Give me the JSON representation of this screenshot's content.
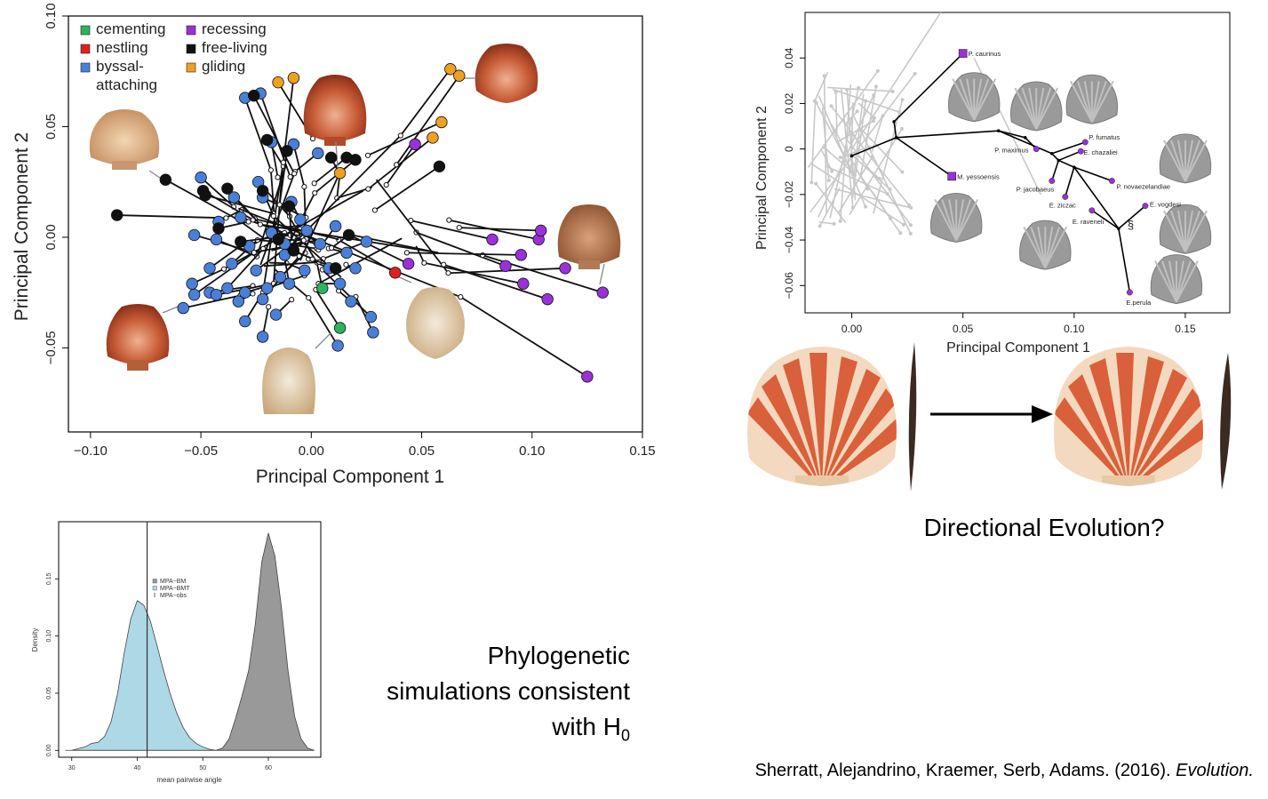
{
  "chart_data": [
    {
      "type": "scatter",
      "xlabel": "Principal Component 1",
      "ylabel": "Principal Component 2",
      "xlim": [
        -0.11,
        0.15
      ],
      "ylim": [
        -0.088,
        0.1
      ],
      "xticks": [
        "−0.10",
        "−0.05",
        "0.00",
        "0.05",
        "0.10",
        "0.15"
      ],
      "xtick_values": [
        -0.1,
        -0.05,
        0,
        0.05,
        0.1,
        0.15
      ],
      "yticks": [
        "−0.05",
        "0.00",
        "0.05",
        "0.10"
      ],
      "ytick_values": [
        -0.05,
        0,
        0.05,
        0.1
      ],
      "grid": false,
      "legend_position": "top-left",
      "categories": [
        {
          "name": "cementing",
          "color": "#2db35d"
        },
        {
          "name": "nestling",
          "color": "#e02020"
        },
        {
          "name": "byssal-attaching",
          "label_lines": [
            "byssal-",
            "attaching"
          ],
          "color": "#4a7fd8"
        },
        {
          "name": "recessing",
          "color": "#9b30d9"
        },
        {
          "name": "free-living",
          "color": "#111111"
        },
        {
          "name": "gliding",
          "color": "#f0a020"
        }
      ],
      "series": [
        {
          "name": "cementing",
          "points": [
            [
              0.005,
              -0.023
            ],
            [
              0.013,
              -0.041
            ]
          ]
        },
        {
          "name": "nestling",
          "points": [
            [
              0.038,
              -0.016
            ]
          ]
        },
        {
          "name": "byssal-attaching",
          "points": [
            [
              -0.03,
              0.063
            ],
            [
              -0.023,
              0.065
            ],
            [
              -0.018,
              0.043
            ],
            [
              -0.008,
              0.042
            ],
            [
              0.003,
              0.038
            ],
            [
              -0.05,
              0.027
            ],
            [
              -0.035,
              0.018
            ],
            [
              -0.024,
              0.025
            ],
            [
              -0.022,
              0.018
            ],
            [
              -0.009,
              0.016
            ],
            [
              -0.032,
              0.009
            ],
            [
              -0.042,
              0.007
            ],
            [
              -0.018,
              0.002
            ],
            [
              -0.005,
              0.008
            ],
            [
              -0.053,
              0.001
            ],
            [
              -0.043,
              -0.001
            ],
            [
              -0.028,
              -0.004
            ],
            [
              -0.012,
              -0.003
            ],
            [
              0.004,
              -0.003
            ],
            [
              0.016,
              -0.007
            ],
            [
              -0.046,
              -0.014
            ],
            [
              -0.036,
              -0.012
            ],
            [
              -0.025,
              -0.015
            ],
            [
              -0.014,
              -0.018
            ],
            [
              -0.003,
              -0.015
            ],
            [
              0.008,
              -0.014
            ],
            [
              0.02,
              -0.014
            ],
            [
              -0.054,
              -0.021
            ],
            [
              -0.046,
              -0.025
            ],
            [
              -0.038,
              -0.023
            ],
            [
              -0.03,
              -0.025
            ],
            [
              -0.02,
              -0.023
            ],
            [
              -0.01,
              -0.021
            ],
            [
              -0.053,
              -0.026
            ],
            [
              -0.043,
              -0.026
            ],
            [
              -0.033,
              -0.029
            ],
            [
              -0.022,
              -0.028
            ],
            [
              -0.016,
              -0.035
            ],
            [
              -0.058,
              -0.032
            ],
            [
              -0.03,
              -0.038
            ],
            [
              -0.022,
              -0.045
            ],
            [
              0.018,
              -0.029
            ],
            [
              0.012,
              -0.049
            ],
            [
              0.027,
              -0.036
            ],
            [
              0.028,
              -0.043
            ],
            [
              -0.012,
              -0.008
            ],
            [
              0.011,
              0.005
            ],
            [
              0.025,
              -0.002
            ],
            [
              0.013,
              -0.021
            ],
            [
              -0.002,
              0.003
            ]
          ]
        },
        {
          "name": "recessing",
          "points": [
            [
              0.047,
              0.042
            ],
            [
              0.044,
              -0.012
            ],
            [
              0.082,
              -0.001
            ],
            [
              0.088,
              -0.013
            ],
            [
              0.096,
              -0.021
            ],
            [
              0.103,
              -0.001
            ],
            [
              0.104,
              0.003
            ],
            [
              0.115,
              -0.014
            ],
            [
              0.107,
              -0.028
            ],
            [
              0.132,
              -0.025
            ],
            [
              0.125,
              -0.063
            ],
            [
              0.095,
              -0.008
            ]
          ]
        },
        {
          "name": "free-living",
          "points": [
            [
              -0.088,
              0.01
            ],
            [
              -0.066,
              0.026
            ],
            [
              -0.049,
              0.021
            ],
            [
              -0.048,
              0.019
            ],
            [
              -0.038,
              0.022
            ],
            [
              -0.042,
              0.004
            ],
            [
              -0.032,
              -0.002
            ],
            [
              -0.026,
              0.064
            ],
            [
              -0.02,
              0.044
            ],
            [
              -0.011,
              0.039
            ],
            [
              -0.022,
              0.021
            ],
            [
              -0.01,
              0.014
            ],
            [
              -0.015,
              -0.001
            ],
            [
              -0.008,
              -0.006
            ],
            [
              0.011,
              -0.014
            ],
            [
              0.016,
              0.036
            ],
            [
              0.02,
              0.035
            ],
            [
              0.058,
              0.032
            ],
            [
              0.017,
              0.001
            ],
            [
              0.009,
              0.036
            ]
          ]
        },
        {
          "name": "gliding",
          "points": [
            [
              -0.015,
              0.07
            ],
            [
              -0.008,
              0.072
            ],
            [
              0.013,
              0.029
            ],
            [
              0.055,
              0.045
            ],
            [
              0.059,
              0.052
            ],
            [
              0.063,
              0.076
            ],
            [
              0.067,
              0.073
            ]
          ]
        }
      ]
    },
    {
      "type": "scatter",
      "xlabel": "Principal Component 1",
      "ylabel": "Principal Component 2",
      "xlim": [
        -0.021,
        0.17
      ],
      "ylim": [
        -0.072,
        0.06
      ],
      "xticks": [
        "0.00",
        "0.05",
        "0.10",
        "0.15"
      ],
      "xtick_values": [
        0,
        0.05,
        0.1,
        0.15
      ],
      "yticks": [
        "0.04",
        "0.02",
        "0",
        "−0.02",
        "−0.04",
        "−0.06"
      ],
      "ytick_values": [
        0.04,
        0.02,
        0,
        -0.02,
        -0.04,
        -0.06
      ],
      "grid": false,
      "annotation": "§",
      "labeled_taxa": [
        {
          "name": "P. caurinus",
          "x": 0.05,
          "y": 0.042
        },
        {
          "name": "M. yessoensis",
          "x": 0.045,
          "y": -0.012
        },
        {
          "name": "P. maximus",
          "x": 0.083,
          "y": 0.0
        },
        {
          "name": "P. fumatus",
          "x": 0.105,
          "y": 0.003
        },
        {
          "name": "E. chazaliei",
          "x": 0.103,
          "y": -0.001
        },
        {
          "name": "P. jacobaeus",
          "x": 0.09,
          "y": -0.014
        },
        {
          "name": "P. novaezelandiae",
          "x": 0.117,
          "y": -0.014
        },
        {
          "name": "E. ziczac",
          "x": 0.096,
          "y": -0.021
        },
        {
          "name": "E. raveneli",
          "x": 0.108,
          "y": -0.027
        },
        {
          "name": "E. vogdesi",
          "x": 0.132,
          "y": -0.025
        },
        {
          "name": "E.perula",
          "x": 0.125,
          "y": -0.063
        }
      ]
    },
    {
      "type": "area",
      "xlabel": "mean pairwise angle",
      "ylabel": "Density",
      "xlim": [
        28,
        68
      ],
      "ylim": [
        -0.006,
        0.2
      ],
      "xticks": [
        "30",
        "40",
        "50",
        "60"
      ],
      "xtick_values": [
        30,
        40,
        50,
        60
      ],
      "yticks": [
        "0.00",
        "0.05",
        "0.10",
        "0.15"
      ],
      "ytick_values": [
        0,
        0.05,
        0.1,
        0.15
      ],
      "legend_position": "top-center",
      "series": [
        {
          "name": "MPA−BM",
          "color": "#999999",
          "x": [
            52,
            53,
            54,
            55,
            56,
            57,
            58,
            59,
            60,
            61,
            62,
            63,
            64,
            65,
            66,
            67
          ],
          "y": [
            0,
            0.002,
            0.01,
            0.028,
            0.048,
            0.07,
            0.11,
            0.165,
            0.19,
            0.17,
            0.125,
            0.07,
            0.03,
            0.01,
            0.002,
            0
          ]
        },
        {
          "name": "MPA−BMT",
          "color": "#add8e6",
          "x": [
            30,
            32,
            33,
            34,
            35,
            36,
            37,
            38,
            39,
            40,
            41,
            42,
            43,
            44,
            45,
            46,
            47,
            48,
            49,
            50,
            51,
            52
          ],
          "y": [
            0,
            0.003,
            0.006,
            0.007,
            0.012,
            0.025,
            0.05,
            0.085,
            0.115,
            0.131,
            0.127,
            0.113,
            0.092,
            0.07,
            0.05,
            0.033,
            0.02,
            0.011,
            0.006,
            0.003,
            0.001,
            0
          ]
        }
      ],
      "observed": {
        "name": "MPA−obs",
        "value": 41.5
      }
    }
  ],
  "caption": {
    "lines": [
      "Phylogenetic",
      "simulations consistent",
      "with H"
    ],
    "subscript": "0"
  },
  "directional_label": "Directional Evolution?",
  "citation": {
    "text": "Sherratt, Alejandrino, Kraemer, Serb, Adams. (2016). ",
    "journal": "Evolution."
  }
}
